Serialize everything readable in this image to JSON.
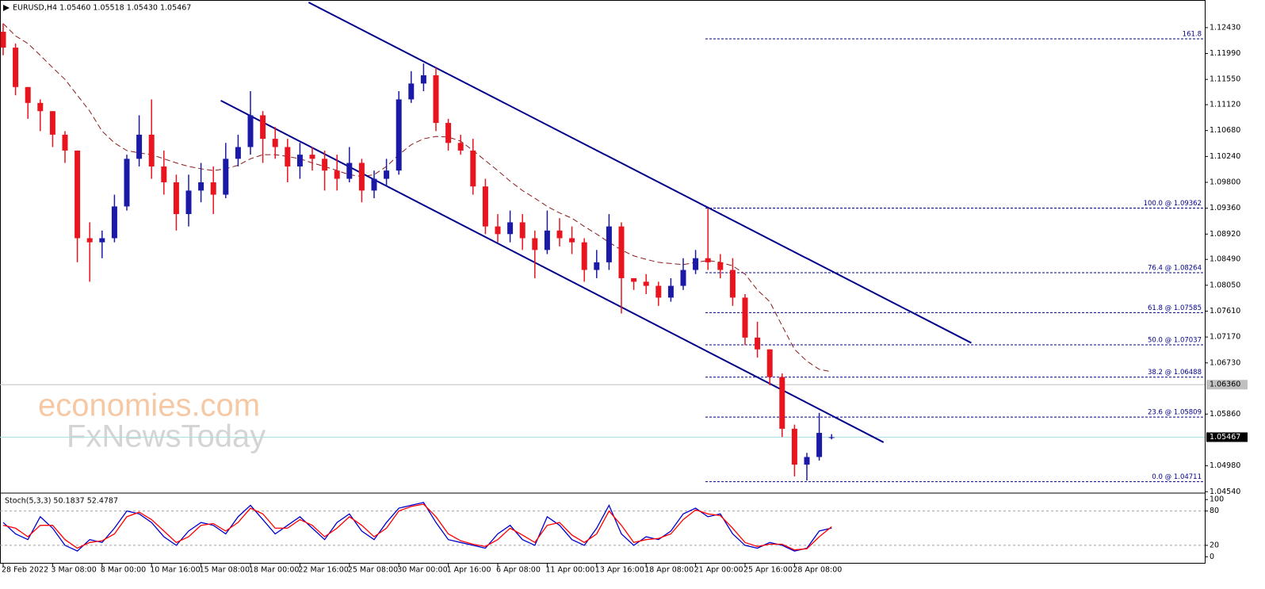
{
  "watermark": [
    "economies.com",
    "FxNewsToday"
  ],
  "chart_data": [
    {
      "type": "candlestick",
      "title": "EURUSD,H4  1.05460 1.05518 1.05430 1.05467",
      "categories": [
        "28 Feb 2022",
        null,
        null,
        null,
        "3 Mar 08:00",
        null,
        null,
        null,
        "8 Mar 00:00",
        null,
        null,
        null,
        "10 Mar 16:00",
        null,
        null,
        null,
        "15 Mar 08:00",
        null,
        null,
        null,
        "18 Mar 00:00",
        null,
        null,
        null,
        "22 Mar 16:00",
        null,
        null,
        null,
        "25 Mar 08:00",
        null,
        null,
        null,
        "30 Mar 00:00",
        null,
        null,
        null,
        "1 Apr 16:00",
        null,
        null,
        null,
        "6 Apr 08:00",
        null,
        null,
        null,
        "11 Apr 00:00",
        null,
        null,
        null,
        "13 Apr 16:00",
        null,
        null,
        null,
        "18 Apr 08:00",
        null,
        null,
        null,
        "21 Apr 00:00",
        null,
        null,
        null,
        "25 Apr 16:00",
        null,
        null,
        null,
        "28 Apr 08:00",
        null,
        null,
        null
      ],
      "open": [
        1.1236,
        1.1209,
        1.1142,
        1.1115,
        1.1101,
        1.1061,
        1.1034,
        1.0885,
        1.0878,
        1.0885,
        1.0939,
        1.102,
        1.1061,
        1.1007,
        1.098,
        1.0926,
        1.0966,
        1.098,
        1.0959,
        1.102,
        1.104,
        1.1094,
        1.1054,
        1.104,
        1.1007,
        1.1027,
        1.102,
        1.1,
        1.0986,
        1.1013,
        1.0966,
        1.0986,
        1.1,
        1.1121,
        1.1148,
        1.1162,
        1.1081,
        1.1047,
        1.1034,
        1.0973,
        1.0905,
        1.0892,
        1.0912,
        1.0885,
        1.0865,
        1.0898,
        1.0885,
        1.0878,
        1.0831,
        1.0844,
        1.0905,
        1.0817,
        1.0811,
        1.0804,
        1.0784,
        1.0804,
        1.0831,
        1.0851,
        1.0844,
        1.0831,
        1.0784,
        1.0716,
        1.0696,
        1.0649,
        1.0561,
        1.05,
        1.0513,
        1.0546
      ],
      "high": [
        1.125,
        1.1216,
        1.1142,
        1.1121,
        1.1101,
        1.1067,
        1.1034,
        1.0912,
        1.0898,
        1.0959,
        1.1027,
        1.1094,
        1.1121,
        1.1034,
        1.0993,
        1.0993,
        1.1013,
        1.1007,
        1.1047,
        1.1061,
        1.1135,
        1.1101,
        1.1074,
        1.1054,
        1.1047,
        1.104,
        1.1034,
        1.1027,
        1.104,
        1.102,
        1.1,
        1.102,
        1.1135,
        1.1169,
        1.1182,
        1.1175,
        1.1088,
        1.1061,
        1.1054,
        1.0986,
        1.0926,
        1.0932,
        1.0926,
        1.0898,
        1.0932,
        1.0919,
        1.0905,
        1.0885,
        1.0865,
        1.0926,
        1.0912,
        1.0817,
        1.0824,
        1.0811,
        1.0817,
        1.0851,
        1.0865,
        1.0936,
        1.0858,
        1.0851,
        1.079,
        1.0743,
        1.0696,
        1.0655,
        1.0568,
        1.052,
        1.0588,
        1.05518
      ],
      "low": [
        1.1196,
        1.1128,
        1.1088,
        1.1067,
        1.104,
        1.1013,
        1.0844,
        1.0811,
        1.0851,
        1.0878,
        1.0932,
        1.1007,
        1.0986,
        1.0959,
        1.0898,
        1.0905,
        1.0946,
        1.0926,
        1.0953,
        1.1007,
        1.1027,
        1.1013,
        1.102,
        1.098,
        1.0986,
        1.1,
        1.0966,
        1.0966,
        1.098,
        1.0946,
        1.0953,
        1.0973,
        1.0993,
        1.1115,
        1.1135,
        1.1067,
        1.1034,
        1.1027,
        1.0959,
        1.0892,
        1.0878,
        1.0878,
        1.0865,
        1.0817,
        1.0858,
        1.0871,
        1.0858,
        1.0811,
        1.0817,
        1.0831,
        1.0757,
        1.0797,
        1.079,
        1.077,
        1.0777,
        1.0797,
        1.0824,
        1.0831,
        1.0817,
        1.077,
        1.0703,
        1.0682,
        1.0635,
        1.0547,
        1.048,
        1.0473,
        1.0507,
        1.0543
      ],
      "close": [
        1.1209,
        1.1142,
        1.1115,
        1.1101,
        1.1061,
        1.1034,
        1.0885,
        1.0878,
        1.0885,
        1.0939,
        1.102,
        1.1061,
        1.1007,
        1.098,
        1.0926,
        1.0966,
        1.098,
        1.0959,
        1.102,
        1.104,
        1.1094,
        1.1054,
        1.104,
        1.1007,
        1.1027,
        1.102,
        1.1,
        1.0986,
        1.1013,
        1.0966,
        1.0986,
        1.1,
        1.1121,
        1.1148,
        1.1162,
        1.1081,
        1.1047,
        1.1034,
        1.0973,
        1.0905,
        1.0892,
        1.0912,
        1.0885,
        1.0865,
        1.0898,
        1.0885,
        1.0878,
        1.0831,
        1.0844,
        1.0905,
        1.0817,
        1.0811,
        1.0804,
        1.0784,
        1.0804,
        1.0831,
        1.0851,
        1.0844,
        1.0831,
        1.0784,
        1.0716,
        1.0696,
        1.0649,
        1.0561,
        1.05,
        1.0513,
        1.0554,
        1.05467
      ],
      "up_color": "#1a1aa6",
      "down_color": "#e8141e",
      "ma": {
        "color": "#8b1a1a",
        "values": [
          1.125,
          1.1229,
          1.1216,
          1.1196,
          1.1175,
          1.1155,
          1.1128,
          1.1101,
          1.1067,
          1.1047,
          1.1034,
          1.103,
          1.1027,
          1.102,
          1.1013,
          1.1007,
          1.1003,
          1.1,
          1.1003,
          1.1009,
          1.102,
          1.1027,
          1.1027,
          1.1024,
          1.102,
          1.1013,
          1.1007,
          1.1,
          1.0993,
          1.099,
          1.0993,
          1.1007,
          1.1027,
          1.1044,
          1.1054,
          1.1058,
          1.1057,
          1.105,
          1.1034,
          1.1017,
          1.1,
          1.0982,
          1.0966,
          1.0953,
          1.0939,
          1.0928,
          1.0919,
          1.0905,
          1.0892,
          1.0878,
          1.0865,
          1.0855,
          1.0849,
          1.0844,
          1.0842,
          1.084,
          1.0844,
          1.0847,
          1.0844,
          1.0838,
          1.0824,
          1.0797,
          1.0777,
          1.0736,
          1.0696,
          1.0676,
          1.0662,
          1.0658
        ]
      },
      "trendlines": [
        {
          "color": "#00008b",
          "x": [
            24.7,
            78.3
          ],
          "y": [
            1.1286,
            1.0707
          ]
        },
        {
          "color": "#00008b",
          "x": [
            17.6,
            71.2
          ],
          "y": [
            1.1119,
            1.0538
          ]
        }
      ],
      "fibo": {
        "color": "#00008b",
        "levels": [
          {
            "value": 1.1224,
            "label": "161.8"
          },
          {
            "value": 1.09362,
            "label": "100.0 @ 1.09362"
          },
          {
            "value": 1.08264,
            "label": "76.4 @ 1.08264"
          },
          {
            "value": 1.07585,
            "label": "61.8 @ 1.07585"
          },
          {
            "value": 1.07037,
            "label": "50.0 @ 1.07037"
          },
          {
            "value": 1.06488,
            "label": "38.2 @ 1.06488"
          },
          {
            "value": 1.05809,
            "label": "23.6 @ 1.05809"
          },
          {
            "value": 1.04711,
            "label": "0.0 @ 1.04711"
          }
        ]
      },
      "price_lines": [
        {
          "value": 1.0636,
          "label": "1.06360",
          "color": "#c0c0c0"
        },
        {
          "value": 1.05467,
          "label": "1.05467",
          "color": "#a8e0e0"
        }
      ],
      "ylim": [
        1.0453,
        1.129
      ],
      "yticks": [
        {
          "value": 1.1243,
          "label": "1.12430"
        },
        {
          "value": 1.1199,
          "label": "1.11990"
        },
        {
          "value": 1.1155,
          "label": "1.11550"
        },
        {
          "value": 1.1112,
          "label": "1.11120"
        },
        {
          "value": 1.1068,
          "label": "1.10680"
        },
        {
          "value": 1.1024,
          "label": "1.10240"
        },
        {
          "value": 1.098,
          "label": "1.09800"
        },
        {
          "value": 1.0936,
          "label": "1.09360"
        },
        {
          "value": 1.0892,
          "label": "1.08920"
        },
        {
          "value": 1.0849,
          "label": "1.08490"
        },
        {
          "value": 1.0805,
          "label": "1.08050"
        },
        {
          "value": 1.0761,
          "label": "1.07610"
        },
        {
          "value": 1.0717,
          "label": "1.07170"
        },
        {
          "value": 1.0673,
          "label": "1.06730"
        },
        {
          "value": 1.0586,
          "label": "1.05860"
        },
        {
          "value": 1.0498,
          "label": "1.04980"
        },
        {
          "value": 1.0454,
          "label": "1.04540"
        }
      ]
    },
    {
      "type": "line",
      "title": "Stoch(5,3,3) 50.1837 52.4787",
      "series": [
        {
          "color": "#0000cd",
          "values": [
            60,
            40,
            30,
            70,
            50,
            20,
            10,
            30,
            25,
            50,
            80,
            75,
            60,
            35,
            20,
            45,
            60,
            55,
            40,
            70,
            90,
            65,
            40,
            55,
            70,
            50,
            30,
            60,
            75,
            45,
            30,
            60,
            85,
            90,
            95,
            60,
            30,
            25,
            20,
            15,
            40,
            55,
            30,
            20,
            70,
            55,
            30,
            20,
            50,
            90,
            40,
            20,
            35,
            30,
            45,
            75,
            85,
            70,
            75,
            40,
            20,
            15,
            25,
            20,
            10,
            15,
            45,
            50.1837
          ]
        },
        {
          "color": "#ff0000",
          "values": [
            55,
            50,
            35,
            55,
            55,
            30,
            15,
            25,
            28,
            40,
            70,
            78,
            65,
            45,
            25,
            35,
            55,
            58,
            45,
            60,
            85,
            75,
            50,
            50,
            65,
            55,
            35,
            50,
            70,
            55,
            35,
            50,
            80,
            88,
            92,
            70,
            40,
            28,
            22,
            18,
            30,
            50,
            38,
            25,
            55,
            60,
            38,
            25,
            40,
            80,
            55,
            25,
            30,
            32,
            40,
            65,
            82,
            75,
            72,
            50,
            25,
            18,
            22,
            22,
            12,
            14,
            35,
            52.4787
          ]
        }
      ],
      "ylim": [
        -12,
        110
      ],
      "yticks": [
        100,
        80,
        20,
        0
      ],
      "levels": [
        80,
        20
      ]
    }
  ]
}
